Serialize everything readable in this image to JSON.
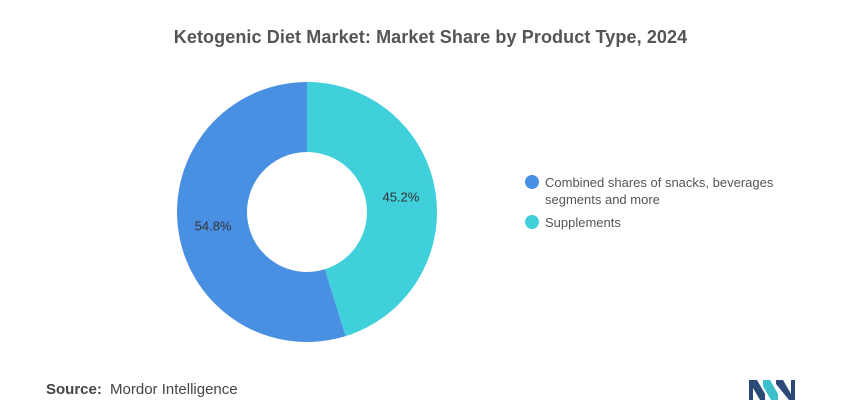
{
  "chart_data": {
    "type": "pie",
    "title": "Ketogenic Diet Market: Market Share by Product Type, 2024",
    "donut": true,
    "legend_position": "right",
    "slices": [
      {
        "label": "Supplements",
        "value": 45.2,
        "display": "45.2%",
        "color": "#40d0dc"
      },
      {
        "label": "Combined shares of snacks, beverages segments and more",
        "value": 54.8,
        "display": "54.8%",
        "color": "#4a90e2"
      }
    ],
    "legend": [
      {
        "label": "Combined shares of snacks, beverages segments and more",
        "color": "#4a90e2"
      },
      {
        "label": "Supplements",
        "color": "#40d0dc"
      }
    ]
  },
  "source": {
    "key": "Source:",
    "value": "Mordor Intelligence"
  },
  "logo": {
    "icon": "mordor-intelligence-logo-icon",
    "colors": [
      "#2b4a78",
      "#3bbfcc"
    ]
  }
}
